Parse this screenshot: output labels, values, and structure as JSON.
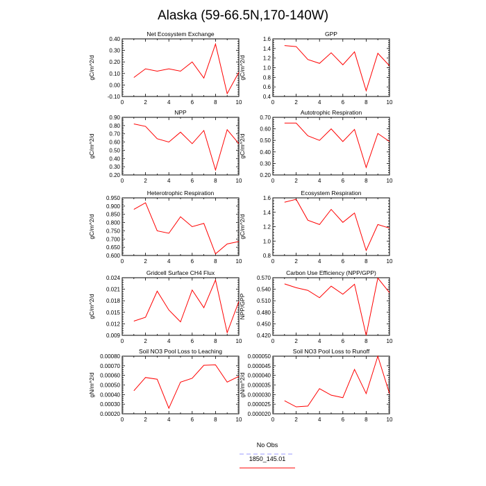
{
  "figure_title": "Alaska (59-66.5N,170-140W)",
  "legend": {
    "entries": [
      {
        "label": "No Obs",
        "color": "#9999ff",
        "style": "dashed"
      },
      {
        "label": "1850_145.01",
        "color": "#ff0000",
        "style": "solid"
      }
    ]
  },
  "chart_data": [
    {
      "type": "line",
      "title": "Net Ecosystem Exchange",
      "ylabel": "gC/m^2/d",
      "x": [
        1,
        2,
        3,
        4,
        5,
        6,
        7,
        8,
        9,
        10
      ],
      "xlim": [
        0,
        10
      ],
      "xticks": [
        0,
        2,
        4,
        6,
        8,
        10
      ],
      "ylim": [
        -0.1,
        0.4
      ],
      "yticks": [
        "-0.10",
        "0.00",
        "0.10",
        "0.20",
        "0.30",
        "0.40"
      ],
      "series": [
        {
          "color": "#ff0000",
          "values": [
            0.065,
            0.14,
            0.12,
            0.14,
            0.12,
            0.2,
            0.06,
            0.355,
            -0.075,
            0.11
          ]
        }
      ]
    },
    {
      "type": "line",
      "title": "GPP",
      "ylabel": "gC/m^2/d",
      "x": [
        1,
        2,
        3,
        4,
        5,
        6,
        7,
        8,
        9,
        10
      ],
      "xlim": [
        0,
        10
      ],
      "xticks": [
        0,
        2,
        4,
        6,
        8,
        10
      ],
      "ylim": [
        0.4,
        1.6
      ],
      "yticks": [
        "0.4",
        "0.6",
        "0.8",
        "1.0",
        "1.2",
        "1.4",
        "1.6"
      ],
      "series": [
        {
          "color": "#ff0000",
          "values": [
            1.46,
            1.44,
            1.17,
            1.09,
            1.31,
            1.06,
            1.33,
            0.52,
            1.3,
            1.04
          ]
        }
      ]
    },
    {
      "type": "line",
      "title": "NPP",
      "ylabel": "gC/m^2/d",
      "x": [
        1,
        2,
        3,
        4,
        5,
        6,
        7,
        8,
        9,
        10
      ],
      "xlim": [
        0,
        10
      ],
      "xticks": [
        0,
        2,
        4,
        6,
        8,
        10
      ],
      "ylim": [
        0.2,
        0.9
      ],
      "yticks": [
        "0.20",
        "0.30",
        "0.40",
        "0.50",
        "0.60",
        "0.70",
        "0.80",
        "0.90"
      ],
      "series": [
        {
          "color": "#ff0000",
          "values": [
            0.82,
            0.79,
            0.64,
            0.6,
            0.72,
            0.58,
            0.74,
            0.26,
            0.75,
            0.58
          ]
        }
      ]
    },
    {
      "type": "line",
      "title": "Autotrophic Respiration",
      "ylabel": "gC/m^2/d",
      "x": [
        1,
        2,
        3,
        4,
        5,
        6,
        7,
        8,
        9,
        10
      ],
      "xlim": [
        0,
        10
      ],
      "xticks": [
        0,
        2,
        4,
        6,
        8,
        10
      ],
      "ylim": [
        0.2,
        0.7
      ],
      "yticks": [
        "0.20",
        "0.30",
        "0.40",
        "0.50",
        "0.60",
        "0.70"
      ],
      "series": [
        {
          "color": "#ff0000",
          "values": [
            0.65,
            0.65,
            0.54,
            0.5,
            0.6,
            0.49,
            0.595,
            0.265,
            0.56,
            0.49
          ]
        }
      ]
    },
    {
      "type": "line",
      "title": "Heterotrophic Respiration",
      "ylabel": "gC/m^2/d",
      "x": [
        1,
        2,
        3,
        4,
        5,
        6,
        7,
        8,
        9,
        10
      ],
      "xlim": [
        0,
        10
      ],
      "xticks": [
        0,
        2,
        4,
        6,
        8,
        10
      ],
      "ylim": [
        0.6,
        0.95
      ],
      "yticks": [
        "0.600",
        "0.650",
        "0.700",
        "0.750",
        "0.800",
        "0.850",
        "0.900",
        "0.950"
      ],
      "series": [
        {
          "color": "#ff0000",
          "values": [
            0.88,
            0.92,
            0.75,
            0.735,
            0.835,
            0.775,
            0.795,
            0.61,
            0.67,
            0.685
          ]
        }
      ]
    },
    {
      "type": "line",
      "title": "Ecosystem Respiration",
      "ylabel": "gC/m^2/d",
      "x": [
        1,
        2,
        3,
        4,
        5,
        6,
        7,
        8,
        9,
        10
      ],
      "xlim": [
        0,
        10
      ],
      "xticks": [
        0,
        2,
        4,
        6,
        8,
        10
      ],
      "ylim": [
        0.8,
        1.6
      ],
      "yticks": [
        "0.8",
        "1.0",
        "1.2",
        "1.4",
        "1.6"
      ],
      "series": [
        {
          "color": "#ff0000",
          "values": [
            1.54,
            1.58,
            1.29,
            1.23,
            1.44,
            1.26,
            1.39,
            0.87,
            1.23,
            1.18
          ]
        }
      ]
    },
    {
      "type": "line",
      "title": "Gridcell Surface CH4 Flux",
      "ylabel": "gC/m^2/d",
      "x": [
        1,
        2,
        3,
        4,
        5,
        6,
        7,
        8,
        9,
        10
      ],
      "xlim": [
        0,
        10
      ],
      "xticks": [
        0,
        2,
        4,
        6,
        8,
        10
      ],
      "ylim": [
        0.009,
        0.024
      ],
      "yticks": [
        "0.009",
        "0.012",
        "0.015",
        "0.018",
        "0.021",
        "0.024"
      ],
      "series": [
        {
          "color": "#ff0000",
          "values": [
            0.0127,
            0.0137,
            0.0205,
            0.0156,
            0.0125,
            0.0208,
            0.0162,
            0.0234,
            0.0097,
            0.0178
          ]
        }
      ]
    },
    {
      "type": "line",
      "title": "Carbon Use Efficiency (NPP/GPP)",
      "ylabel": "NPP/GPP",
      "x": [
        1,
        2,
        3,
        4,
        5,
        6,
        7,
        8,
        9,
        10
      ],
      "xlim": [
        0,
        10
      ],
      "xticks": [
        0,
        2,
        4,
        6,
        8,
        10
      ],
      "ylim": [
        0.42,
        0.57
      ],
      "yticks": [
        "0.420",
        "0.450",
        "0.480",
        "0.510",
        "0.540",
        "0.570"
      ],
      "series": [
        {
          "color": "#ff0000",
          "values": [
            0.554,
            0.544,
            0.537,
            0.518,
            0.548,
            0.527,
            0.553,
            0.42,
            0.569,
            0.531
          ]
        }
      ]
    },
    {
      "type": "line",
      "title": "Soil NO3 Pool Loss to Leaching",
      "ylabel": "gN/m^2/d",
      "x": [
        1,
        2,
        3,
        4,
        5,
        6,
        7,
        8,
        9,
        10
      ],
      "xlim": [
        0,
        10
      ],
      "xticks": [
        0,
        2,
        4,
        6,
        8,
        10
      ],
      "ylim": [
        0.0002,
        0.0008
      ],
      "yticks": [
        "0.00020",
        "0.00030",
        "0.00040",
        "0.00050",
        "0.00060",
        "0.00070",
        "0.00080"
      ],
      "series": [
        {
          "color": "#ff0000",
          "values": [
            0.00044,
            0.000578,
            0.00056,
            0.000258,
            0.00053,
            0.00057,
            0.000705,
            0.00071,
            0.00053,
            0.00059
          ]
        }
      ]
    },
    {
      "type": "line",
      "title": "Soil NO3 Pool Loss to Runoff",
      "ylabel": "gN/m^2/d",
      "x": [
        1,
        2,
        3,
        4,
        5,
        6,
        7,
        8,
        9,
        10
      ],
      "xlim": [
        0,
        10
      ],
      "xticks": [
        0,
        2,
        4,
        6,
        8,
        10
      ],
      "ylim": [
        2e-05,
        5e-05
      ],
      "yticks": [
        "0.000020",
        "0.000025",
        "0.000030",
        "0.000035",
        "0.000040",
        "0.000045",
        "0.000050"
      ],
      "series": [
        {
          "color": "#ff0000",
          "values": [
            2.68e-05,
            2.36e-05,
            2.4e-05,
            3.31e-05,
            2.97e-05,
            2.84e-05,
            4.31e-05,
            3.05e-05,
            5e-05,
            3.05e-05
          ]
        }
      ]
    }
  ]
}
